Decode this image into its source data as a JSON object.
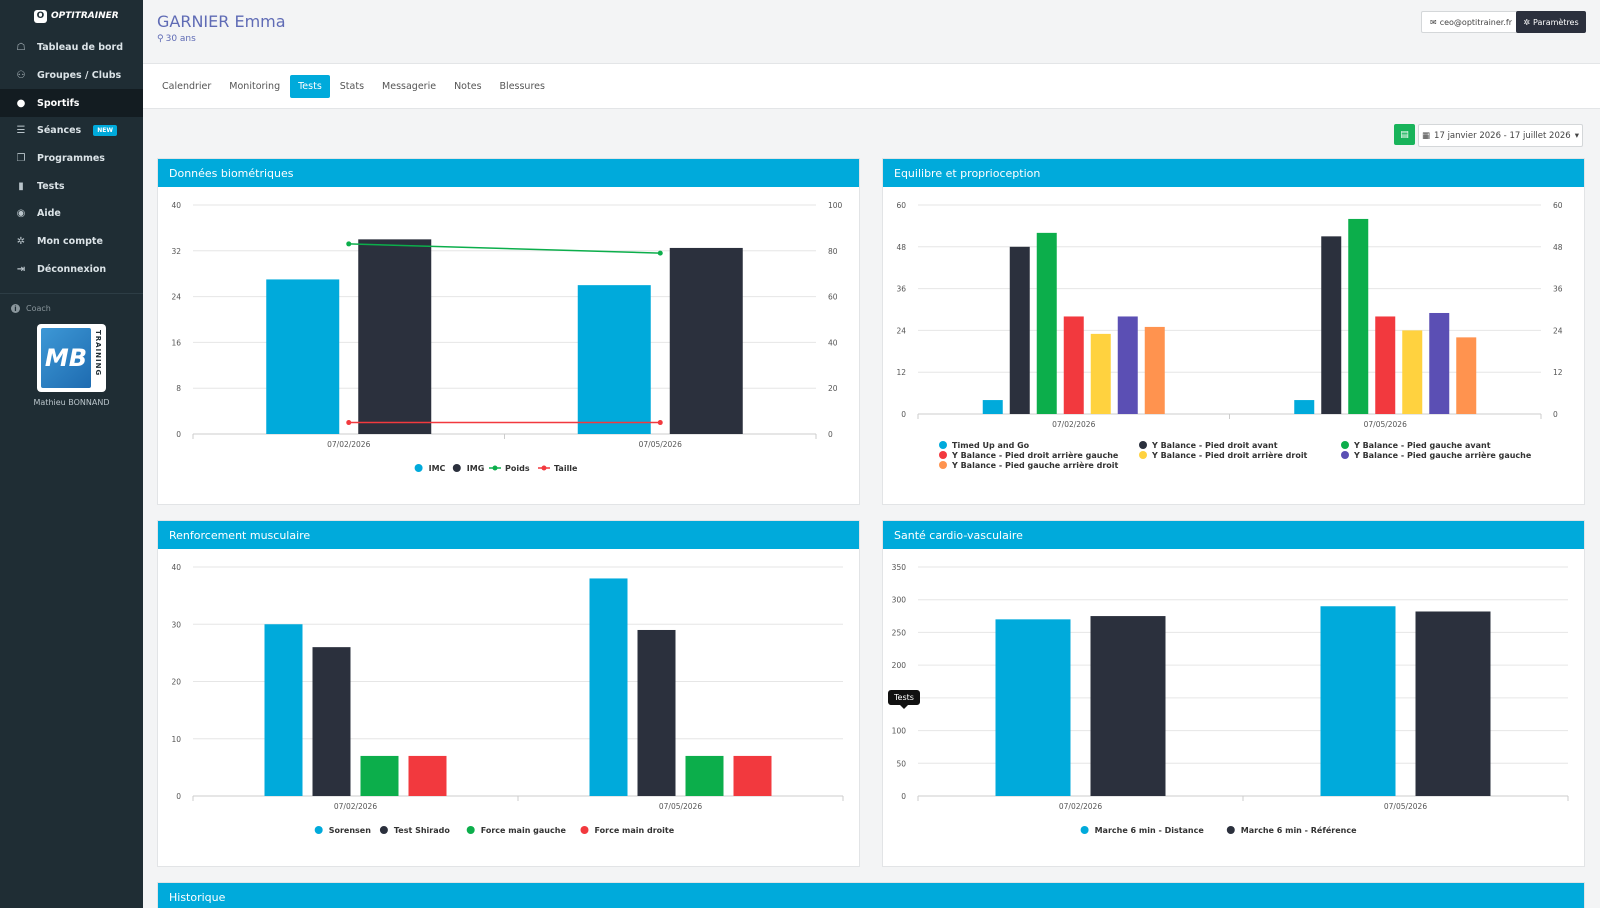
{
  "app": {
    "logo_text": "OPTITRAINER"
  },
  "sidebar": {
    "items": [
      {
        "label": "Tableau de bord",
        "icon": "dashboard-icon",
        "glyph": "☖"
      },
      {
        "label": "Groupes / Clubs",
        "icon": "users-icon",
        "glyph": "⚇"
      },
      {
        "label": "Sportifs",
        "icon": "user-icon",
        "glyph": "●",
        "active": true
      },
      {
        "label": "Séances",
        "icon": "database-icon",
        "glyph": "☰",
        "badge": "NEW"
      },
      {
        "label": "Programmes",
        "icon": "copy-icon",
        "glyph": "❐"
      },
      {
        "label": "Tests",
        "icon": "bar-chart-icon",
        "glyph": "▮"
      },
      {
        "label": "Aide",
        "icon": "life-ring-icon",
        "glyph": "◉"
      },
      {
        "label": "Mon compte",
        "icon": "gear-icon",
        "glyph": "✲"
      },
      {
        "label": "Déconnexion",
        "icon": "sign-out-icon",
        "glyph": "⇥"
      }
    ],
    "coach_label": "Coach",
    "coach_logo_text": "MB",
    "coach_logo_side": "TRAINING",
    "coach_name": "Mathieu BONNAND"
  },
  "header": {
    "athlete_name": "GARNIER Emma",
    "athlete_age": "30 ans",
    "email_button": "ceo@optitrainer.fr",
    "params_button": "Paramètres"
  },
  "tabs": [
    {
      "label": "Calendrier"
    },
    {
      "label": "Monitoring"
    },
    {
      "label": "Tests",
      "active": true
    },
    {
      "label": "Stats"
    },
    {
      "label": "Messagerie"
    },
    {
      "label": "Notes"
    },
    {
      "label": "Blessures"
    }
  ],
  "toolbar": {
    "date_range": "17 janvier 2026 - 17 juillet 2026"
  },
  "tooltip": "Tests",
  "panels": {
    "bio": "Données biométriques",
    "equilibre": "Equilibre et proprioception",
    "renfo": "Renforcement musculaire",
    "cardio": "Santé cardio-vasculaire",
    "historique": "Historique"
  },
  "colors": {
    "blue": "#00aadb",
    "dark": "#2b303d",
    "green": "#0cae4b",
    "red": "#f2393e",
    "yellow": "#ffd23f",
    "purple": "#5b4fb4",
    "orange": "#ff934f"
  },
  "chart_data": [
    {
      "id": "bio",
      "type": "bar",
      "categories": [
        "07/02/2026",
        "07/05/2026"
      ],
      "ylim": [
        0,
        40
      ],
      "yticks": [
        0,
        8,
        16,
        24,
        32,
        40
      ],
      "y2lim": [
        0,
        100
      ],
      "y2ticks": [
        0,
        20,
        40,
        60,
        80,
        100
      ],
      "series": [
        {
          "name": "IMC",
          "kind": "bar",
          "color": "blue",
          "values": [
            27,
            26
          ]
        },
        {
          "name": "IMG",
          "kind": "bar",
          "color": "dark",
          "values": [
            34,
            32.5
          ]
        },
        {
          "name": "Poids",
          "kind": "line",
          "color": "green",
          "axis": "right",
          "values": [
            83,
            79
          ]
        },
        {
          "name": "Taille",
          "kind": "line",
          "color": "red",
          "axis": "right",
          "values": [
            5,
            5
          ]
        }
      ]
    },
    {
      "id": "equilibre",
      "type": "bar",
      "categories": [
        "07/02/2026",
        "07/05/2026"
      ],
      "ylim": [
        0,
        60
      ],
      "yticks": [
        0,
        12,
        24,
        36,
        48,
        60
      ],
      "y2ticks": [
        0,
        12,
        24,
        36,
        48,
        60
      ],
      "series": [
        {
          "name": "Timed Up and Go",
          "color": "blue",
          "values": [
            4,
            4
          ]
        },
        {
          "name": "Y Balance - Pied droit avant",
          "color": "dark",
          "values": [
            48,
            51
          ]
        },
        {
          "name": "Y Balance - Pied gauche avant",
          "color": "green",
          "values": [
            52,
            56
          ]
        },
        {
          "name": "Y Balance - Pied droit arrière gauche",
          "color": "red",
          "values": [
            28,
            28
          ]
        },
        {
          "name": "Y Balance - Pied droit arrière droit",
          "color": "yellow",
          "values": [
            23,
            24
          ]
        },
        {
          "name": "Y Balance - Pied gauche arrière gauche",
          "color": "purple",
          "values": [
            28,
            29
          ]
        },
        {
          "name": "Y Balance - Pied gauche arrière droit",
          "color": "orange",
          "values": [
            25,
            22
          ]
        }
      ]
    },
    {
      "id": "renfo",
      "type": "bar",
      "categories": [
        "07/02/2026",
        "07/05/2026"
      ],
      "ylim": [
        0,
        40
      ],
      "yticks": [
        0,
        10,
        20,
        30,
        40
      ],
      "series": [
        {
          "name": "Sorensen",
          "color": "blue",
          "values": [
            30,
            38
          ]
        },
        {
          "name": "Test Shirado",
          "color": "dark",
          "values": [
            26,
            29
          ]
        },
        {
          "name": "Force main gauche",
          "color": "green",
          "values": [
            7,
            7
          ]
        },
        {
          "name": "Force main droite",
          "color": "red",
          "values": [
            7,
            7
          ]
        }
      ]
    },
    {
      "id": "cardio",
      "type": "bar",
      "categories": [
        "07/02/2026",
        "07/05/2026"
      ],
      "ylim": [
        0,
        350
      ],
      "yticks": [
        0,
        50,
        100,
        150,
        200,
        250,
        300,
        350
      ],
      "series": [
        {
          "name": "Marche 6 min - Distance",
          "color": "blue",
          "values": [
            270,
            290
          ]
        },
        {
          "name": "Marche 6 min - Référence",
          "color": "dark",
          "values": [
            275,
            282
          ]
        }
      ]
    }
  ]
}
